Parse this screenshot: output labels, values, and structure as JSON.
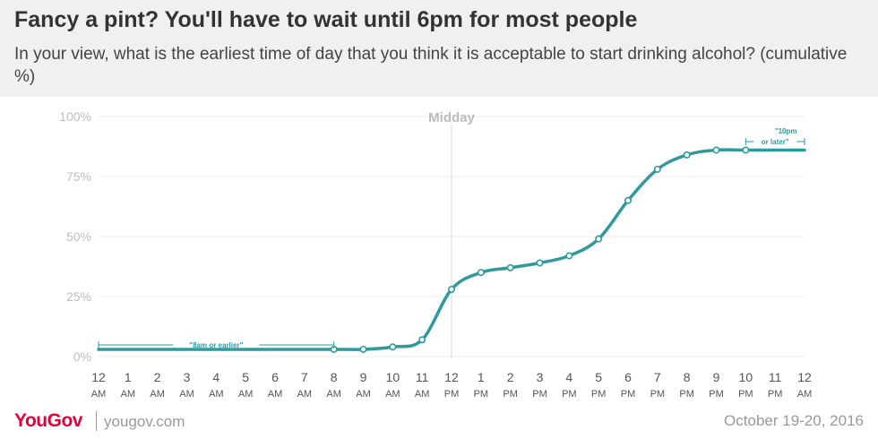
{
  "header": {
    "title": "Fancy a pint? You'll have to wait until 6pm for most people",
    "subtitle": "In your view, what is the earliest time of day that you think it is acceptable to start drinking alcohol? (cumulative %)"
  },
  "chart_data": {
    "type": "line",
    "title": "Fancy a pint? You'll have to wait until 6pm for most people",
    "ylim": [
      0,
      100
    ],
    "y_ticks": [
      "0%",
      "25%",
      "50%",
      "75%",
      "100%"
    ],
    "y_tick_values": [
      0,
      25,
      50,
      75,
      100
    ],
    "categories": [
      [
        "12",
        "AM"
      ],
      [
        "1",
        "AM"
      ],
      [
        "2",
        "AM"
      ],
      [
        "3",
        "AM"
      ],
      [
        "4",
        "AM"
      ],
      [
        "5",
        "AM"
      ],
      [
        "6",
        "AM"
      ],
      [
        "7",
        "AM"
      ],
      [
        "8",
        "AM"
      ],
      [
        "9",
        "AM"
      ],
      [
        "10",
        "AM"
      ],
      [
        "11",
        "AM"
      ],
      [
        "12",
        "PM"
      ],
      [
        "1",
        "PM"
      ],
      [
        "2",
        "PM"
      ],
      [
        "3",
        "PM"
      ],
      [
        "4",
        "PM"
      ],
      [
        "5",
        "PM"
      ],
      [
        "6",
        "PM"
      ],
      [
        "7",
        "PM"
      ],
      [
        "8",
        "PM"
      ],
      [
        "9",
        "PM"
      ],
      [
        "10",
        "PM"
      ],
      [
        "11",
        "PM"
      ],
      [
        "12",
        "AM"
      ]
    ],
    "series": [
      {
        "name": "Cumulative %",
        "color": "#2e9a9d",
        "values": [
          null,
          null,
          null,
          null,
          null,
          null,
          null,
          null,
          3,
          3,
          4,
          7,
          28,
          35,
          37,
          39,
          42,
          49,
          65,
          78,
          84,
          86,
          86,
          null,
          86
        ],
        "start_value": 3
      }
    ],
    "grid": true,
    "annotations": [
      {
        "label": "Midday",
        "x_index": 12
      },
      {
        "label": "\"8am or earlier\"",
        "from": 0,
        "to": 8,
        "value": 3
      },
      {
        "label_line1": "\"10pm",
        "label_line2": "or later\"",
        "from": 22,
        "to": 24
      }
    ]
  },
  "footer": {
    "brand": "YouGov",
    "site": "yougov.com",
    "date": "October 19-20, 2016"
  }
}
